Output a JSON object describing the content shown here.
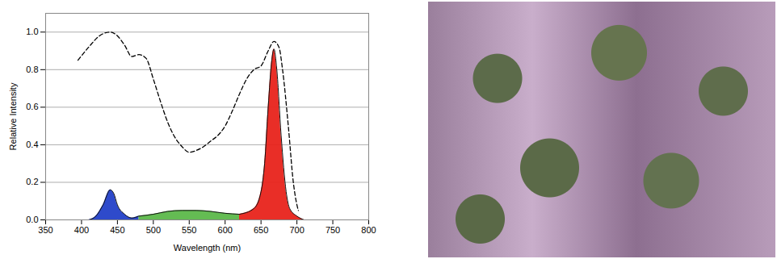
{
  "chart_data": {
    "type": "area",
    "xlabel": "Wavelength (nm)",
    "ylabel": "Relative Intensity",
    "xlim": [
      350,
      800
    ],
    "xticks": [
      350,
      400,
      450,
      500,
      550,
      600,
      650,
      700,
      750,
      800
    ],
    "ylim": [
      0,
      1.1
    ],
    "yticks": [
      {
        "value": 0,
        "label": "0.0"
      },
      {
        "value": 0.2,
        "label": "0.2"
      },
      {
        "value": 0.4,
        "label": "0.4"
      },
      {
        "value": 0.6,
        "label": "0.6"
      },
      {
        "value": 0.8,
        "label": "0.8"
      },
      {
        "value": 1,
        "label": "1.0"
      }
    ],
    "grid": "y",
    "series": [
      {
        "type": "area",
        "color": "#2340c8",
        "x": [
          410,
          420,
          430,
          440,
          445,
          450,
          460,
          470,
          480
        ],
        "values": [
          0,
          0.02,
          0.08,
          0.16,
          0.14,
          0.08,
          0.03,
          0.01,
          0.02
        ]
      },
      {
        "type": "area",
        "color": "#5cb84a",
        "x": [
          480,
          500,
          520,
          540,
          560,
          580,
          600,
          620
        ],
        "values": [
          0.02,
          0.03,
          0.045,
          0.05,
          0.05,
          0.045,
          0.035,
          0.03
        ]
      },
      {
        "type": "area",
        "color": "#e8231b",
        "x": [
          620,
          640,
          650,
          655,
          660,
          665,
          668,
          672,
          678,
          685,
          690,
          700,
          710
        ],
        "values": [
          0.03,
          0.06,
          0.15,
          0.3,
          0.6,
          0.85,
          0.91,
          0.8,
          0.45,
          0.15,
          0.06,
          0.02,
          0
        ]
      },
      {
        "type": "line",
        "color": "#000000",
        "line_style": "dashed",
        "x": [
          395,
          410,
          425,
          440,
          450,
          460,
          470,
          480,
          490,
          500,
          510,
          520,
          530,
          540,
          550,
          560,
          570,
          580,
          590,
          600,
          610,
          620,
          630,
          640,
          650,
          660,
          668,
          675,
          680,
          688,
          695,
          700,
          702
        ],
        "values": [
          0.85,
          0.92,
          0.98,
          1.0,
          0.98,
          0.93,
          0.87,
          0.88,
          0.86,
          0.75,
          0.63,
          0.52,
          0.44,
          0.39,
          0.36,
          0.37,
          0.39,
          0.42,
          0.45,
          0.5,
          0.58,
          0.67,
          0.75,
          0.8,
          0.82,
          0.9,
          0.95,
          0.92,
          0.8,
          0.5,
          0.2,
          0.08,
          0.05
        ]
      }
    ]
  }
}
